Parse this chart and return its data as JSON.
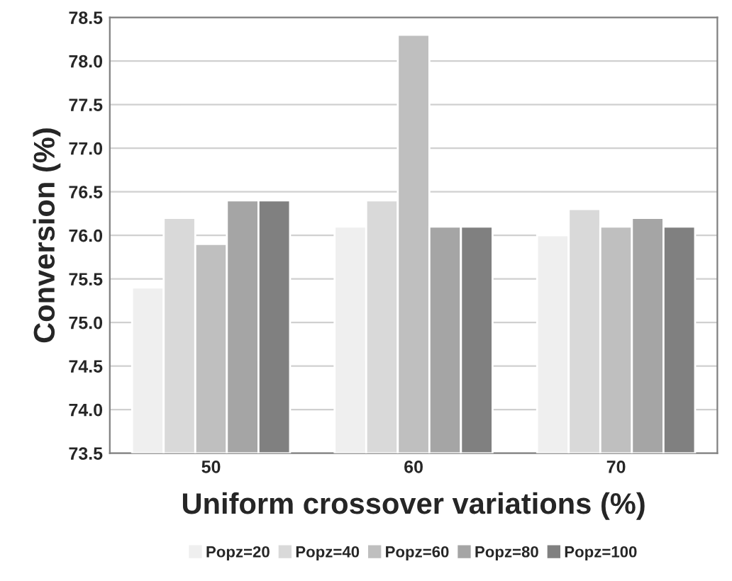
{
  "chart_data": {
    "type": "bar",
    "xlabel": "Uniform crossover variations (%)",
    "ylabel": "Conversion (%)",
    "categories": [
      "50",
      "60",
      "70"
    ],
    "series": [
      {
        "name": "Popz=20",
        "color": "#efefef",
        "values": [
          75.4,
          76.1,
          76.0
        ]
      },
      {
        "name": "Popz=40",
        "color": "#d9d9d9",
        "values": [
          76.2,
          76.4,
          76.3
        ]
      },
      {
        "name": "Popz=60",
        "color": "#bfbfbf",
        "values": [
          75.9,
          78.3,
          76.1
        ]
      },
      {
        "name": "Popz=80",
        "color": "#a5a5a5",
        "values": [
          76.4,
          76.1,
          76.2
        ]
      },
      {
        "name": "Popz=100",
        "color": "#808080",
        "values": [
          76.4,
          76.1,
          76.1
        ]
      }
    ],
    "ylim": [
      73.5,
      78.5
    ],
    "yticks": [
      {
        "value": 73.5,
        "label": "73.5"
      },
      {
        "value": 74,
        "label": "74.0"
      },
      {
        "value": 74.5,
        "label": "74.5"
      },
      {
        "value": 75,
        "label": "75.0"
      },
      {
        "value": 75.5,
        "label": "75.5"
      },
      {
        "value": 76,
        "label": "76.0"
      },
      {
        "value": 76.5,
        "label": "76.5"
      },
      {
        "value": 77,
        "label": "77.0"
      },
      {
        "value": 77.5,
        "label": "77.5"
      },
      {
        "value": 78,
        "label": "78.0"
      },
      {
        "value": 78.5,
        "label": "78.5"
      }
    ],
    "grid": "y",
    "legend": "bottom"
  }
}
